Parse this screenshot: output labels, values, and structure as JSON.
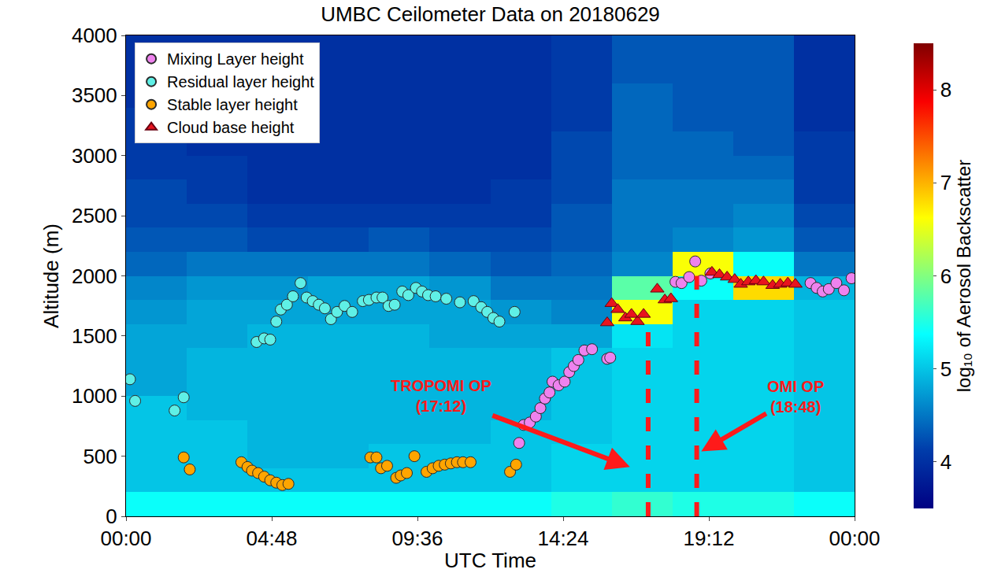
{
  "chart_data": {
    "type": "heatmap",
    "title": "UMBC Ceilometer Data on 20180629",
    "x_label": "UTC Time",
    "y_label": "Altitude (m)",
    "xlim": [
      0,
      24
    ],
    "xticks": [
      {
        "value": 0,
        "label": "00:00"
      },
      {
        "value": 4.8,
        "label": "04:48"
      },
      {
        "value": 9.6,
        "label": "09:36"
      },
      {
        "value": 14.4,
        "label": "14:24"
      },
      {
        "value": 19.2,
        "label": "19:12"
      },
      {
        "value": 24,
        "label": "00:00"
      }
    ],
    "ylim": [
      0,
      4000
    ],
    "yticks": [
      0,
      500,
      1000,
      1500,
      2000,
      2500,
      3000,
      3500,
      4000
    ],
    "grid": false,
    "legend": "upper left",
    "heatmap": {
      "color": "Jet",
      "colorbar_label": "log₁₀ of Aerosol Backscatter",
      "zlim": [
        3.5,
        8.5
      ],
      "zticks": [
        4,
        5,
        6,
        7,
        8
      ],
      "x": [
        1,
        3,
        5,
        7,
        9,
        11,
        13,
        15,
        17,
        19,
        21,
        23
      ],
      "y": [
        100,
        300,
        500,
        700,
        900,
        1100,
        1300,
        1500,
        1700,
        1900,
        2100,
        2300,
        2500,
        2700,
        2900,
        3100,
        3300,
        3500,
        3700,
        3900
      ],
      "cells": [
        [
          5.4,
          5.0,
          5.0,
          5.0,
          5.0,
          4.8,
          4.8,
          4.8,
          4.7,
          4.6,
          4.4,
          4.3,
          4.2,
          4.2,
          4.1,
          4.1,
          4.1,
          4.0,
          4.0,
          4.0
        ],
        [
          5.4,
          5.0,
          5.0,
          5.0,
          4.9,
          4.9,
          4.9,
          4.8,
          4.8,
          4.7,
          4.5,
          4.3,
          4.2,
          4.1,
          4.1,
          4.0,
          4.0,
          4.0,
          4.0,
          4.0
        ],
        [
          5.4,
          5.0,
          4.9,
          4.9,
          4.9,
          4.9,
          4.9,
          4.9,
          4.8,
          4.7,
          4.5,
          4.2,
          4.1,
          4.0,
          4.0,
          4.0,
          4.0,
          4.0,
          4.0,
          4.0
        ],
        [
          5.4,
          5.0,
          4.9,
          4.9,
          4.9,
          4.9,
          4.9,
          4.9,
          4.8,
          4.8,
          4.5,
          4.2,
          4.1,
          4.0,
          4.0,
          4.0,
          4.0,
          4.0,
          4.0,
          4.0
        ],
        [
          5.4,
          5.0,
          5.0,
          4.9,
          4.9,
          4.9,
          4.9,
          4.9,
          4.8,
          4.8,
          4.5,
          4.3,
          4.1,
          4.0,
          4.0,
          4.0,
          4.0,
          4.0,
          4.0,
          4.0
        ],
        [
          5.4,
          5.0,
          5.0,
          4.9,
          4.9,
          4.9,
          4.9,
          4.8,
          4.8,
          4.7,
          4.4,
          4.2,
          4.1,
          4.0,
          4.0,
          4.0,
          4.0,
          4.0,
          4.0,
          4.0
        ],
        [
          5.4,
          5.0,
          5.0,
          5.0,
          4.9,
          4.9,
          4.9,
          4.8,
          4.7,
          4.5,
          4.3,
          4.2,
          4.1,
          4.1,
          4.0,
          4.0,
          4.0,
          4.0,
          4.0,
          4.0
        ],
        [
          5.5,
          5.1,
          5.1,
          5.0,
          5.0,
          5.0,
          5.0,
          4.8,
          4.6,
          4.5,
          4.4,
          4.3,
          4.3,
          4.2,
          4.2,
          4.2,
          4.1,
          4.1,
          4.1,
          4.1
        ],
        [
          5.6,
          5.1,
          5.1,
          5.1,
          5.1,
          5.1,
          5.1,
          5.2,
          6.6,
          5.8,
          4.6,
          4.5,
          4.5,
          4.5,
          4.4,
          4.4,
          4.4,
          4.4,
          4.3,
          4.3
        ],
        [
          5.5,
          5.1,
          5.1,
          5.1,
          5.1,
          5.1,
          5.1,
          5.1,
          5.1,
          5.4,
          6.6,
          4.6,
          4.5,
          4.5,
          4.4,
          4.4,
          4.3,
          4.3,
          4.3,
          4.3
        ],
        [
          5.5,
          5.1,
          5.1,
          5.1,
          5.1,
          5.1,
          5.1,
          5.1,
          5.1,
          6.8,
          5.4,
          4.7,
          4.6,
          4.5,
          4.4,
          4.3,
          4.3,
          4.3,
          4.3,
          4.3
        ],
        [
          5.4,
          5.0,
          5.0,
          5.0,
          5.0,
          5.0,
          5.0,
          5.0,
          5.0,
          4.9,
          4.5,
          4.3,
          4.2,
          4.1,
          4.1,
          4.1,
          4.0,
          4.0,
          4.0,
          4.0
        ]
      ]
    },
    "series": [
      {
        "name": "Mixing Layer height",
        "type": "scatter",
        "marker": "circle",
        "color": "#ee82ee",
        "x": [
          12.95,
          13.1,
          13.3,
          13.5,
          13.65,
          13.8,
          13.95,
          14.05,
          14.25,
          14.45,
          14.6,
          14.75,
          14.9,
          15.1,
          15.35,
          15.85,
          15.95,
          18.1,
          18.3,
          18.55,
          18.75,
          18.95,
          19.25,
          22.55,
          22.75,
          22.95,
          23.15,
          23.4,
          23.65,
          23.9
        ],
        "values": [
          610,
          760,
          780,
          830,
          900,
          980,
          1030,
          1120,
          1090,
          1120,
          1200,
          1250,
          1300,
          1380,
          1390,
          1310,
          1320,
          1950,
          1940,
          1990,
          2120,
          1960,
          2020,
          1940,
          1900,
          1870,
          1890,
          1940,
          1880,
          1980
        ]
      },
      {
        "name": "Residual layer height",
        "type": "scatter",
        "marker": "circle",
        "color": "#5ff0e6",
        "x": [
          0.13,
          0.3,
          1.6,
          1.9,
          4.3,
          4.55,
          4.75,
          4.95,
          5.1,
          5.3,
          5.5,
          5.75,
          5.95,
          6.15,
          6.35,
          6.55,
          6.75,
          6.95,
          7.2,
          7.45,
          7.8,
          8.0,
          8.25,
          8.45,
          8.65,
          8.85,
          9.1,
          9.3,
          9.55,
          9.75,
          9.95,
          10.2,
          10.55,
          11.0,
          11.45,
          11.7,
          11.9,
          12.1,
          12.3,
          12.8
        ],
        "values": [
          1140,
          960,
          880,
          990,
          1450,
          1480,
          1470,
          1620,
          1720,
          1760,
          1830,
          1940,
          1820,
          1790,
          1760,
          1730,
          1640,
          1700,
          1750,
          1700,
          1790,
          1800,
          1820,
          1820,
          1750,
          1760,
          1870,
          1840,
          1900,
          1870,
          1840,
          1830,
          1810,
          1780,
          1790,
          1740,
          1700,
          1650,
          1620,
          1700
        ]
      },
      {
        "name": "Stable layer height",
        "type": "scatter",
        "marker": "circle",
        "color": "#ffa500",
        "x": [
          1.9,
          2.1,
          3.8,
          4.0,
          4.15,
          4.35,
          4.55,
          4.75,
          4.95,
          5.15,
          5.35,
          8.05,
          8.25,
          8.4,
          8.6,
          8.9,
          9.05,
          9.25,
          9.5,
          9.9,
          10.1,
          10.3,
          10.5,
          10.7,
          10.9,
          11.1,
          11.35,
          12.65,
          12.85
        ],
        "values": [
          490,
          390,
          450,
          410,
          380,
          360,
          330,
          300,
          280,
          260,
          270,
          490,
          490,
          400,
          420,
          320,
          340,
          360,
          500,
          370,
          400,
          420,
          430,
          440,
          450,
          450,
          450,
          370,
          430
        ]
      },
      {
        "name": "Cloud base height",
        "type": "scatter",
        "marker": "triangle-up",
        "color": "#e8141e",
        "x": [
          15.85,
          16.0,
          16.2,
          16.45,
          16.65,
          16.85,
          17.05,
          17.5,
          17.75,
          17.95,
          19.3,
          19.55,
          19.8,
          20.05,
          20.25,
          20.5,
          20.75,
          21.0,
          21.3,
          21.55,
          21.8,
          22.05
        ],
        "values": [
          1610,
          1770,
          1720,
          1650,
          1680,
          1620,
          1680,
          1890,
          1800,
          1810,
          2030,
          2010,
          1990,
          1970,
          1930,
          1950,
          1960,
          1950,
          1920,
          1930,
          1940,
          1930
        ]
      }
    ],
    "annotations": [
      {
        "text": [
          "TROPOMI OP",
          "(17:12)"
        ],
        "x": 17.2,
        "height": 1650,
        "color": "#ff1a1a",
        "line_style": "dashed"
      },
      {
        "text": [
          "OMI OP",
          "(18:48)"
        ],
        "x": 18.8,
        "height": 2000,
        "color": "#ff1a1a",
        "line_style": "dashed"
      }
    ]
  }
}
